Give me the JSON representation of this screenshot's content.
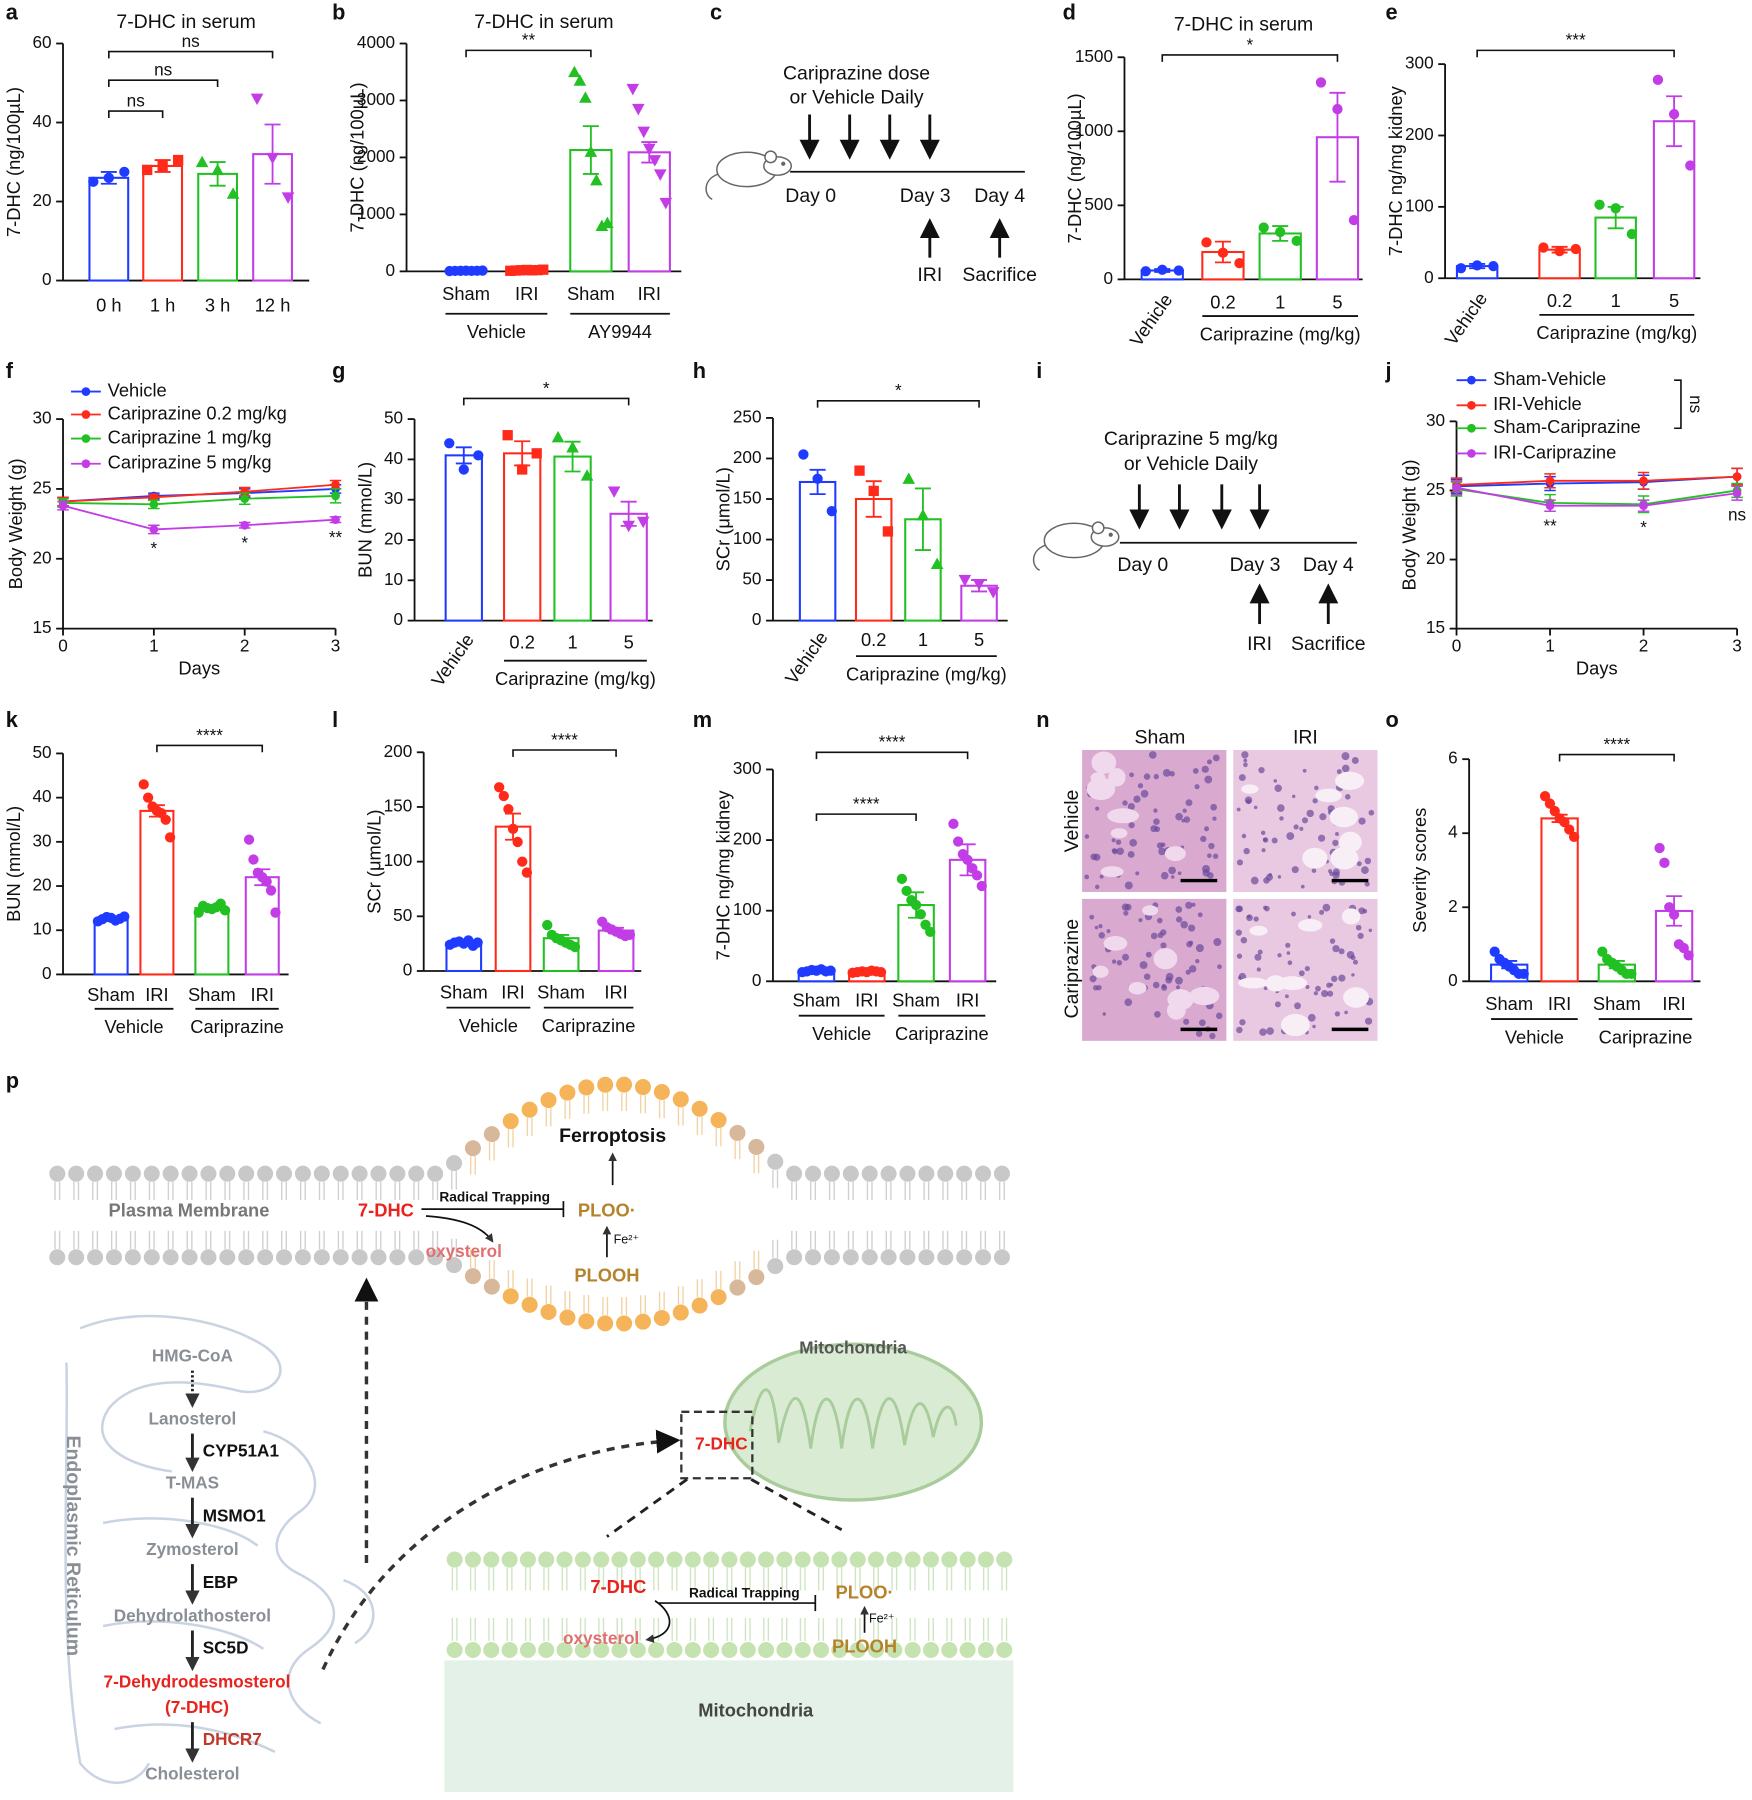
{
  "chart_data": [
    {
      "panel": "a",
      "type": "bar",
      "title": "7-DHC in serum",
      "y_label": "7-DHC (ng/100µL)",
      "categories": [
        "0 h",
        "1 h",
        "3 h",
        "12 h"
      ],
      "colors": [
        "#1f3bff",
        "#ff2a1a",
        "#22c022",
        "#c23de6"
      ],
      "markers": [
        "circle",
        "square",
        "triangle",
        "triangle-down"
      ],
      "values": [
        26,
        29,
        27,
        32
      ],
      "errors": [
        1.5,
        1.5,
        3,
        7.5
      ],
      "points": [
        [
          25,
          26,
          27.5
        ],
        [
          28,
          29,
          30.5
        ],
        [
          30,
          28,
          22
        ],
        [
          46,
          31,
          21
        ]
      ],
      "ylim": [
        0,
        60
      ],
      "yticks": [
        0,
        20,
        40,
        60
      ],
      "brackets": [
        {
          "from": 0,
          "to": 1,
          "label": "ns"
        },
        {
          "from": 0,
          "to": 2,
          "label": "ns"
        },
        {
          "from": 0,
          "to": 3,
          "label": "ns"
        }
      ]
    },
    {
      "panel": "b",
      "type": "bar",
      "title": "7-DHC in serum",
      "y_label": "7-DHC (ng/100µL)",
      "categories": [
        "Sham",
        "IRI",
        "Sham",
        "IRI"
      ],
      "colors": [
        "#1f3bff",
        "#ff2a1a",
        "#22c022",
        "#c23de6"
      ],
      "markers": [
        "circle",
        "square",
        "triangle",
        "triangle-down"
      ],
      "values": [
        10,
        20,
        2130,
        2090
      ],
      "errors": [
        5,
        5,
        420,
        180
      ],
      "points": [
        [
          5,
          8,
          10,
          12,
          9,
          11,
          14
        ],
        [
          10,
          15,
          20,
          25,
          18,
          22,
          30
        ],
        [
          3500,
          3350,
          3050,
          2100,
          1600,
          800,
          850
        ],
        [
          3200,
          2850,
          2450,
          2150,
          1950,
          1700,
          1200
        ]
      ],
      "ylim": [
        0,
        4000
      ],
      "yticks": [
        0,
        1000,
        2000,
        3000,
        4000
      ],
      "brackets": [
        {
          "from": 0,
          "to": 2,
          "label": "**"
        }
      ],
      "groups": [
        {
          "label": "Vehicle",
          "from": 0,
          "to": 1
        },
        {
          "label": "AY9944",
          "from": 2,
          "to": 3
        }
      ]
    },
    {
      "panel": "d",
      "type": "bar",
      "title": "7-DHC in serum",
      "y_label": "7-DHC (ng/100µL)",
      "categories": [
        "Vehicle",
        "0.2",
        "1",
        "5"
      ],
      "rotate_first_label": true,
      "colors": [
        "#1f3bff",
        "#ff2a1a",
        "#22c022",
        "#c23de6"
      ],
      "markers": [
        "circle",
        "circle",
        "circle",
        "circle"
      ],
      "values": [
        60,
        185,
        310,
        960
      ],
      "errors": [
        10,
        70,
        50,
        300
      ],
      "points": [
        [
          55,
          65,
          60
        ],
        [
          250,
          180,
          110
        ],
        [
          350,
          320,
          260
        ],
        [
          1330,
          1150,
          400
        ]
      ],
      "ylim": [
        0,
        1500
      ],
      "yticks": [
        0,
        500,
        1000,
        1500
      ],
      "brackets": [
        {
          "from": 0,
          "to": 3,
          "label": "*"
        }
      ],
      "groups": [
        {
          "label": "Cariprazine (mg/kg)",
          "from": 1,
          "to": 3
        }
      ]
    },
    {
      "panel": "e",
      "type": "bar",
      "y_label": "7-DHC ng/mg kidney",
      "categories": [
        "Vehicle",
        "0.2",
        "1",
        "5"
      ],
      "rotate_first_label": true,
      "colors": [
        "#1f3bff",
        "#ff2a1a",
        "#22c022",
        "#c23de6"
      ],
      "markers": [
        "circle",
        "circle",
        "circle",
        "circle"
      ],
      "values": [
        17,
        40,
        85,
        220
      ],
      "errors": [
        3,
        4,
        15,
        35
      ],
      "points": [
        [
          14,
          18,
          17
        ],
        [
          43,
          38,
          41
        ],
        [
          103,
          98,
          62
        ],
        [
          278,
          230,
          158
        ]
      ],
      "ylim": [
        0,
        300
      ],
      "yticks": [
        0,
        100,
        200,
        300
      ],
      "brackets": [
        {
          "from": 0,
          "to": 3,
          "label": "***"
        }
      ],
      "groups": [
        {
          "label": "Cariprazine (mg/kg)",
          "from": 1,
          "to": 3
        }
      ]
    },
    {
      "panel": "f",
      "type": "line",
      "y_label": "Body Weight (g)",
      "x_label": "Days",
      "x": [
        0,
        1,
        2,
        3
      ],
      "xlim": [
        0,
        3
      ],
      "xticks": [
        0,
        1,
        2,
        3
      ],
      "ylim": [
        15,
        30
      ],
      "yticks": [
        15,
        20,
        25,
        30
      ],
      "series": [
        {
          "name": "Vehicle",
          "color": "#1f3bff",
          "values": [
            24.1,
            24.5,
            24.7,
            25.0
          ],
          "errors": [
            0.3,
            0.2,
            0.3,
            0.3
          ]
        },
        {
          "name": "Cariprazine 0.2 mg/kg",
          "color": "#ff2a1a",
          "values": [
            24.1,
            24.4,
            24.8,
            25.3
          ],
          "errors": [
            0.3,
            0.2,
            0.3,
            0.3
          ]
        },
        {
          "name": "Cariprazine 1 mg/kg",
          "color": "#22c022",
          "values": [
            24.0,
            23.9,
            24.3,
            24.5
          ],
          "errors": [
            0.3,
            0.3,
            0.4,
            0.5
          ]
        },
        {
          "name": "Cariprazine 5 mg/kg",
          "color": "#c23de6",
          "values": [
            23.8,
            22.1,
            22.4,
            22.8
          ],
          "errors": [
            0.3,
            0.3,
            0.2,
            0.2
          ]
        }
      ],
      "annotations": [
        {
          "x": 1,
          "label": "*"
        },
        {
          "x": 2,
          "label": "*"
        },
        {
          "x": 3,
          "label": "**"
        }
      ]
    },
    {
      "panel": "g",
      "type": "bar",
      "y_label": "BUN (mmol/L)",
      "categories": [
        "Vehicle",
        "0.2",
        "1",
        "5"
      ],
      "rotate_first_label": true,
      "colors": [
        "#1f3bff",
        "#ff2a1a",
        "#22c022",
        "#c23de6"
      ],
      "markers": [
        "circle",
        "square",
        "triangle",
        "triangle-down"
      ],
      "values": [
        41,
        41.5,
        40.7,
        26.5
      ],
      "errors": [
        2,
        3,
        3.7,
        3
      ],
      "points": [
        [
          44,
          37.5,
          41
        ],
        [
          46,
          37.5,
          41.5
        ],
        [
          45.5,
          43,
          36
        ],
        [
          32,
          23.5,
          24.5
        ]
      ],
      "ylim": [
        0,
        50
      ],
      "yticks": [
        0,
        10,
        20,
        30,
        40,
        50
      ],
      "brackets": [
        {
          "from": 0,
          "to": 3,
          "label": "*"
        }
      ],
      "groups": [
        {
          "label": "Cariprazine (mg/kg)",
          "from": 1,
          "to": 3
        }
      ]
    },
    {
      "panel": "h",
      "type": "bar",
      "y_label": "SCr (μmol/L)",
      "categories": [
        "Vehicle",
        "0.2",
        "1",
        "5"
      ],
      "rotate_first_label": true,
      "colors": [
        "#1f3bff",
        "#ff2a1a",
        "#22c022",
        "#c23de6"
      ],
      "markers": [
        "circle",
        "square",
        "triangle",
        "triangle-down"
      ],
      "values": [
        171,
        150,
        125,
        43
      ],
      "errors": [
        15,
        22,
        38,
        7
      ],
      "points": [
        [
          205,
          175,
          135
        ],
        [
          185,
          160,
          110
        ],
        [
          175,
          130,
          70
        ],
        [
          50,
          45,
          35
        ]
      ],
      "ylim": [
        0,
        250
      ],
      "yticks": [
        0,
        50,
        100,
        150,
        200,
        250
      ],
      "brackets": [
        {
          "from": 0,
          "to": 3,
          "label": "*"
        }
      ],
      "groups": [
        {
          "label": "Cariprazine (mg/kg)",
          "from": 1,
          "to": 3
        }
      ]
    },
    {
      "panel": "j",
      "type": "line",
      "y_label": "Body Weight (g)",
      "x_label": "Days",
      "x": [
        0,
        1,
        2,
        3
      ],
      "xlim": [
        0,
        3
      ],
      "xticks": [
        0,
        1,
        2,
        3
      ],
      "ylim": [
        15,
        30
      ],
      "yticks": [
        15,
        20,
        25,
        30
      ],
      "series": [
        {
          "name": "Sham-Vehicle",
          "color": "#1f3bff",
          "values": [
            25.3,
            25.5,
            25.6,
            26.0
          ],
          "errors": [
            0.5,
            0.5,
            0.5,
            0.6
          ]
        },
        {
          "name": "IRI-Vehicle",
          "color": "#ff2a1a",
          "values": [
            25.4,
            25.7,
            25.7,
            26.0
          ],
          "errors": [
            0.5,
            0.5,
            0.6,
            0.6
          ]
        },
        {
          "name": "Sham-Cariprazine",
          "color": "#22c022",
          "values": [
            25.1,
            24.1,
            24.0,
            25.0
          ],
          "errors": [
            0.5,
            0.6,
            0.6,
            0.5
          ]
        },
        {
          "name": "IRI-Cariprazine",
          "color": "#c23de6",
          "values": [
            25.2,
            23.9,
            23.9,
            24.8
          ],
          "errors": [
            0.5,
            0.4,
            0.4,
            0.5
          ]
        }
      ],
      "annotations": [
        {
          "x": 1,
          "label": "**"
        },
        {
          "x": 2,
          "label": "*"
        },
        {
          "x": 3,
          "label": "ns"
        }
      ],
      "legend_bracket_label": "ns"
    },
    {
      "panel": "k",
      "type": "bar",
      "y_label": "BUN (mmol/L)",
      "categories": [
        "Sham",
        "IRI",
        "Sham",
        "IRI"
      ],
      "colors": [
        "#1f3bff",
        "#ff2a1a",
        "#22c022",
        "#c23de6"
      ],
      "markers": [
        "circle",
        "circle",
        "circle",
        "circle"
      ],
      "values": [
        12.5,
        37,
        15,
        22
      ],
      "errors": [
        0.4,
        1.3,
        0.4,
        1.8
      ],
      "points": [
        [
          12,
          12.5,
          13,
          12.8,
          12.2,
          12.6,
          13.1
        ],
        [
          43,
          40,
          38,
          37,
          36.5,
          35,
          31
        ],
        [
          14,
          15.5,
          15,
          14.8,
          15.2,
          16,
          14.5
        ],
        [
          30.5,
          26,
          23,
          22,
          21,
          19,
          14
        ]
      ],
      "ylim": [
        0,
        50
      ],
      "yticks": [
        0,
        10,
        20,
        30,
        40,
        50
      ],
      "brackets": [
        {
          "from": 1,
          "to": 3,
          "label": "****"
        }
      ],
      "groups": [
        {
          "label": "Vehicle",
          "from": 0,
          "to": 1
        },
        {
          "label": "Cariprazine",
          "from": 2,
          "to": 3
        }
      ]
    },
    {
      "panel": "l",
      "type": "bar",
      "y_label": "SCr (μmol/L)",
      "categories": [
        "Sham",
        "IRI",
        "Sham",
        "IRI"
      ],
      "colors": [
        "#1f3bff",
        "#ff2a1a",
        "#22c022",
        "#c23de6"
      ],
      "markers": [
        "circle",
        "circle",
        "circle",
        "circle"
      ],
      "values": [
        26,
        132,
        30,
        37
      ],
      "errors": [
        1.5,
        12,
        3,
        2.5
      ],
      "points": [
        [
          24,
          26,
          27,
          25,
          28,
          23,
          26
        ],
        [
          168,
          160,
          148,
          130,
          118,
          100,
          90
        ],
        [
          42,
          33,
          30,
          28,
          26,
          24,
          22
        ],
        [
          45,
          40,
          38,
          36,
          34,
          32,
          33
        ]
      ],
      "ylim": [
        0,
        200
      ],
      "yticks": [
        0,
        50,
        100,
        150,
        200
      ],
      "brackets": [
        {
          "from": 1,
          "to": 3,
          "label": "****"
        }
      ],
      "groups": [
        {
          "label": "Vehicle",
          "from": 0,
          "to": 1
        },
        {
          "label": "Cariprazine",
          "from": 2,
          "to": 3
        }
      ]
    },
    {
      "panel": "m",
      "type": "bar",
      "y_label": "7-DHC ng/mg kidney",
      "categories": [
        "Sham",
        "IRI",
        "Sham",
        "IRI"
      ],
      "colors": [
        "#1f3bff",
        "#ff2a1a",
        "#22c022",
        "#c23de6"
      ],
      "markers": [
        "circle",
        "circle",
        "circle",
        "circle"
      ],
      "values": [
        15,
        14,
        108,
        172
      ],
      "errors": [
        1,
        1,
        18,
        22
      ],
      "points": [
        [
          13,
          14,
          16,
          15,
          17,
          14,
          15
        ],
        [
          12,
          13,
          14,
          13,
          15,
          14,
          13
        ],
        [
          145,
          128,
          115,
          108,
          95,
          80,
          70
        ],
        [
          223,
          198,
          180,
          172,
          160,
          150,
          135
        ]
      ],
      "ylim": [
        0,
        300
      ],
      "yticks": [
        0,
        100,
        200,
        300
      ],
      "brackets": [
        {
          "from": 0,
          "to": 2,
          "label": "****"
        },
        {
          "from": 0,
          "to": 3,
          "label": "****"
        }
      ],
      "groups": [
        {
          "label": "Vehicle",
          "from": 0,
          "to": 1
        },
        {
          "label": "Cariprazine",
          "from": 2,
          "to": 3
        }
      ]
    },
    {
      "panel": "o",
      "type": "bar",
      "y_label": "Severity scores",
      "categories": [
        "Sham",
        "IRI",
        "Sham",
        "IRI"
      ],
      "colors": [
        "#1f3bff",
        "#ff2a1a",
        "#22c022",
        "#c23de6"
      ],
      "markers": [
        "circle",
        "circle",
        "circle",
        "circle"
      ],
      "values": [
        0.45,
        4.4,
        0.45,
        1.9
      ],
      "errors": [
        0.1,
        0.1,
        0.1,
        0.4
      ],
      "points": [
        [
          0.8,
          0.6,
          0.5,
          0.4,
          0.3,
          0.2,
          0.2
        ],
        [
          5,
          4.8,
          4.6,
          4.4,
          4.3,
          4.1,
          3.9
        ],
        [
          0.8,
          0.6,
          0.5,
          0.4,
          0.3,
          0.2,
          0.2
        ],
        [
          3.6,
          3.2,
          2.0,
          1.8,
          1.0,
          0.9,
          0.7
        ]
      ],
      "ylim": [
        0,
        6
      ],
      "yticks": [
        0,
        2,
        4,
        6
      ],
      "brackets": [
        {
          "from": 1,
          "to": 3,
          "label": "****"
        }
      ],
      "groups": [
        {
          "label": "Vehicle",
          "from": 0,
          "to": 1
        },
        {
          "label": "Cariprazine",
          "from": 2,
          "to": 3
        }
      ]
    }
  ],
  "timelines": [
    {
      "panel": "c",
      "title_lines": [
        "Cariprazine dose",
        "or Vehicle Daily"
      ],
      "days": [
        "Day 0",
        "Day 3",
        "Day 4"
      ],
      "events": [
        "IRI",
        "Sacrifice"
      ]
    },
    {
      "panel": "i",
      "title_lines": [
        "Cariprazine 5 mg/kg",
        "or Vehicle Daily"
      ],
      "days": [
        "Day 0",
        "Day 3",
        "Day 4"
      ],
      "events": [
        "IRI",
        "Sacrifice"
      ]
    }
  ],
  "histology": {
    "panel": "n",
    "columns": [
      "Sham",
      "IRI"
    ],
    "rows": [
      "Vehicle",
      "Cariprazine"
    ]
  },
  "mechanism": {
    "panel": "p",
    "ferroptosis": "Ferroptosis",
    "plasma_membrane": "Plasma Membrane",
    "membrane": {
      "dhc": "7-DHC",
      "trapping": "Radical Trapping",
      "ploo": "PLOO·",
      "fe": "Fe²⁺",
      "oxysterol": "oxysterol",
      "plooh": "PLOOH"
    },
    "mitochondria_title": "Mitochondria",
    "mito_box_label": "7-DHC",
    "inset": {
      "dhc": "7-DHC",
      "trapping": "Radical Trapping",
      "ploo": "PLOO·",
      "fe": "Fe²⁺",
      "oxysterol": "oxysterol",
      "plooh": "PLOOH",
      "compartment": "Mitochondria"
    },
    "er_label": "Endoplasmic Reticulum",
    "pathway": [
      "HMG-CoA",
      "Lanosterol",
      "T-MAS",
      "Zymosterol",
      "Dehydrolathosterol",
      "7-Dehydrodesmosterol",
      "(7-DHC)",
      "Cholesterol"
    ],
    "enzymes": [
      "CYP51A1",
      "MSMO1",
      "EBP",
      "SC5D",
      "DHCR7"
    ]
  }
}
